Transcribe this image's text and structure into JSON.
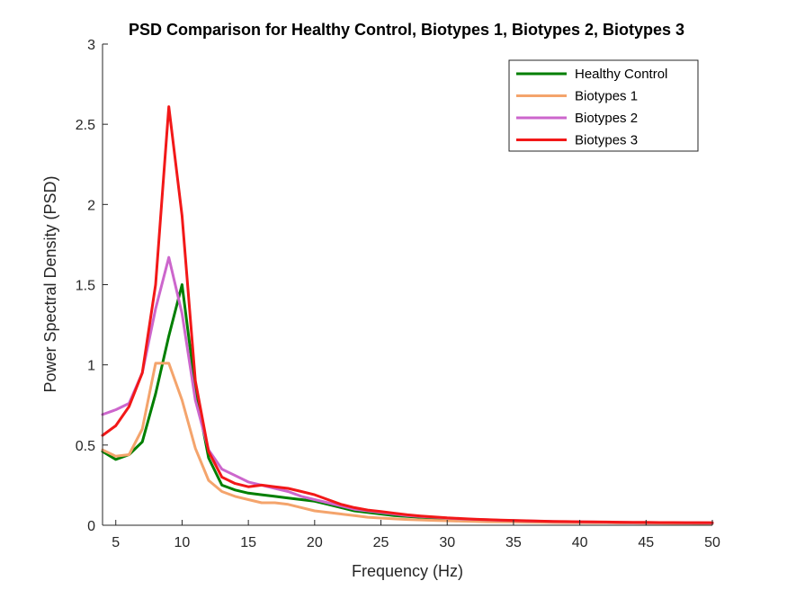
{
  "chart_data": {
    "type": "line",
    "title": "PSD Comparison for Healthy Control, Biotypes 1, Biotypes 2, Biotypes 3",
    "xlabel": "Frequency (Hz)",
    "ylabel": "Power Spectral Density (PSD)",
    "xlim": [
      4,
      50
    ],
    "ylim": [
      0,
      3
    ],
    "xticks": [
      5,
      10,
      15,
      20,
      25,
      30,
      35,
      40,
      45,
      50
    ],
    "yticks": [
      0,
      0.5,
      1,
      1.5,
      2,
      2.5,
      3
    ],
    "ytick_labels": [
      "0",
      "0.5",
      "1",
      "1.5",
      "2",
      "2.5",
      "3"
    ],
    "grid": false,
    "legend_position": "top-right",
    "x": [
      4,
      5,
      6,
      7,
      8,
      9,
      10,
      11,
      12,
      13,
      14,
      15,
      16,
      17,
      18,
      19,
      20,
      21,
      22,
      23,
      24,
      25,
      26,
      27,
      28,
      29,
      30,
      31,
      32,
      33,
      34,
      35,
      36,
      37,
      38,
      39,
      40,
      41,
      42,
      43,
      44,
      45,
      46,
      47,
      48,
      49,
      50
    ],
    "series": [
      {
        "name": "Healthy Control",
        "color": "#007f00",
        "values": [
          0.46,
          0.41,
          0.44,
          0.52,
          0.82,
          1.18,
          1.5,
          0.85,
          0.42,
          0.25,
          0.22,
          0.2,
          0.19,
          0.18,
          0.17,
          0.16,
          0.15,
          0.13,
          0.11,
          0.09,
          0.08,
          0.07,
          0.06,
          0.055,
          0.05,
          0.045,
          0.04,
          0.036,
          0.033,
          0.03,
          0.028,
          0.026,
          0.024,
          0.022,
          0.021,
          0.02,
          0.019,
          0.018,
          0.017,
          0.016,
          0.016,
          0.015,
          0.015,
          0.014,
          0.014,
          0.013,
          0.013
        ]
      },
      {
        "name": "Biotypes 1",
        "color": "#f4a46c",
        "values": [
          0.47,
          0.43,
          0.44,
          0.6,
          1.01,
          1.01,
          0.78,
          0.48,
          0.28,
          0.21,
          0.18,
          0.16,
          0.14,
          0.14,
          0.13,
          0.11,
          0.09,
          0.08,
          0.07,
          0.06,
          0.05,
          0.045,
          0.04,
          0.036,
          0.033,
          0.03,
          0.028,
          0.026,
          0.024,
          0.022,
          0.021,
          0.02,
          0.019,
          0.018,
          0.017,
          0.016,
          0.016,
          0.015,
          0.015,
          0.014,
          0.014,
          0.013,
          0.013,
          0.012,
          0.012,
          0.012,
          0.011
        ]
      },
      {
        "name": "Biotypes 2",
        "color": "#cc66cc",
        "values": [
          0.69,
          0.72,
          0.76,
          0.95,
          1.35,
          1.67,
          1.32,
          0.78,
          0.47,
          0.35,
          0.31,
          0.27,
          0.25,
          0.23,
          0.21,
          0.18,
          0.16,
          0.14,
          0.12,
          0.1,
          0.09,
          0.08,
          0.07,
          0.06,
          0.055,
          0.05,
          0.045,
          0.04,
          0.037,
          0.034,
          0.031,
          0.029,
          0.027,
          0.025,
          0.023,
          0.022,
          0.021,
          0.02,
          0.019,
          0.018,
          0.017,
          0.017,
          0.016,
          0.016,
          0.015,
          0.015,
          0.014
        ]
      },
      {
        "name": "Biotypes 3",
        "color": "#f21818",
        "values": [
          0.56,
          0.62,
          0.74,
          0.95,
          1.5,
          2.61,
          1.93,
          0.9,
          0.46,
          0.3,
          0.26,
          0.24,
          0.25,
          0.24,
          0.23,
          0.21,
          0.19,
          0.16,
          0.13,
          0.11,
          0.095,
          0.085,
          0.075,
          0.065,
          0.058,
          0.052,
          0.046,
          0.042,
          0.038,
          0.035,
          0.032,
          0.03,
          0.028,
          0.026,
          0.024,
          0.023,
          0.022,
          0.021,
          0.02,
          0.019,
          0.018,
          0.018,
          0.017,
          0.017,
          0.016,
          0.016,
          0.016
        ]
      }
    ]
  }
}
